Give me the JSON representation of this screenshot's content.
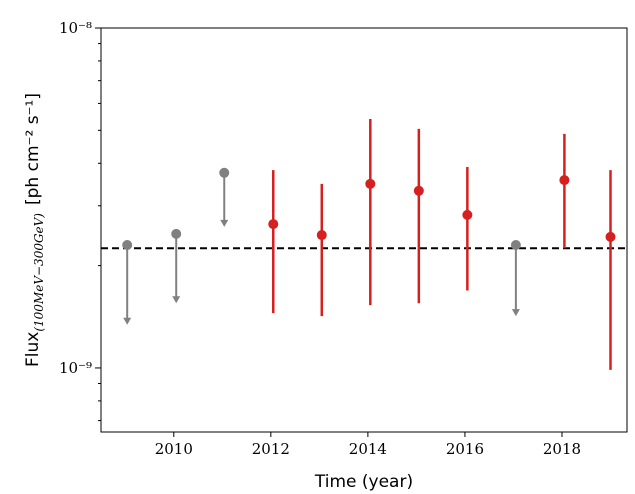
{
  "chart_data": {
    "type": "upper-limit-scatter",
    "xlabel": "Time (year)",
    "ylabel": "Flux",
    "ylabel_subscript": "(100MeV−300GeV)",
    "ylabel_unit": "[ph cm⁻² s⁻¹]",
    "xlim": [
      2008.5,
      2019.34
    ],
    "xticks": [
      2010,
      2012,
      2014,
      2016,
      2018
    ],
    "ylim": [
      6.48e-10,
      1e-08
    ],
    "log_y": true,
    "yticks": [
      {
        "value": 1e-09,
        "label": "10⁻⁹"
      },
      {
        "value": 1e-08,
        "label": "10⁻⁸"
      }
    ],
    "yminorticks": [
      7e-10,
      8e-10,
      9e-10,
      2e-09,
      3e-09,
      4e-09,
      5e-09,
      6e-09,
      7e-09,
      8e-09,
      9e-09
    ],
    "hline": 2.25e-09,
    "upper_limits": {
      "color": "#808080",
      "x": [
        2009.04,
        2010.05,
        2011.04,
        2017.05
      ],
      "values": [
        2.3e-09,
        2.48e-09,
        3.75e-09,
        2.3e-09
      ],
      "limits": [
        1.34e-09,
        1.55e-09,
        2.6e-09,
        1.42e-09
      ]
    },
    "detections": {
      "color": "#d62020",
      "x": [
        2012.05,
        2013.05,
        2014.05,
        2015.05,
        2016.05,
        2018.05,
        2019.0
      ],
      "values": [
        2.65e-09,
        2.46e-09,
        3.48e-09,
        3.32e-09,
        2.82e-09,
        3.57e-09,
        2.43e-09
      ],
      "low": [
        1.45e-09,
        1.42e-09,
        1.53e-09,
        1.55e-09,
        1.69e-09,
        2.25e-09,
        9.87e-10
      ],
      "high": [
        3.82e-09,
        3.48e-09,
        5.4e-09,
        5.05e-09,
        3.9e-09,
        4.88e-09,
        3.82e-09
      ]
    }
  }
}
